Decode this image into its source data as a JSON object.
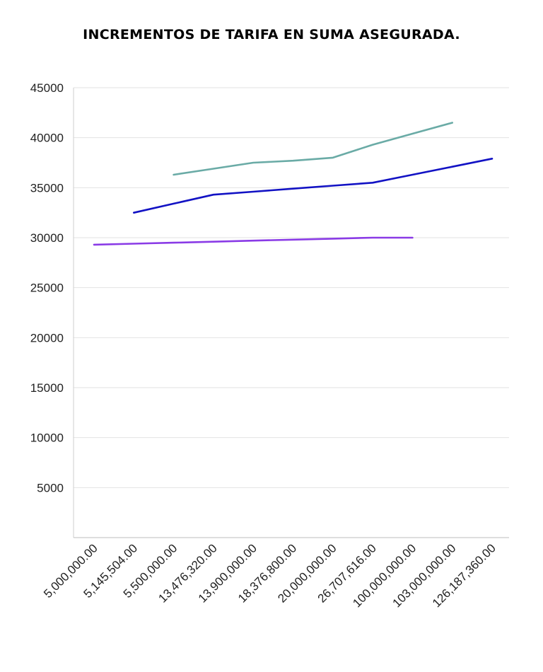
{
  "chart_data": {
    "type": "line",
    "title": "INCREMENTOS DE TARIFA EN SUMA ASEGURADA.",
    "xlabel": "",
    "ylabel": "",
    "categories": [
      "5,000,000.00",
      "5,145,504.00",
      "5,500,000.00",
      "13,476,320.00",
      "13,900,000.00",
      "18,376,800.00",
      "20,000,000.00",
      "26,707,616.00",
      "100,000,000.00",
      "103,000,000.00",
      "126,187,360.00"
    ],
    "yticks": [
      5000,
      10000,
      15000,
      20000,
      25000,
      30000,
      35000,
      40000,
      45000
    ],
    "ylim": [
      0,
      45000
    ],
    "grid": true,
    "series": [
      {
        "color": "#6aaba6",
        "values": [
          null,
          null,
          36300,
          36900,
          37500,
          37700,
          38000,
          39300,
          40400,
          41500,
          null
        ]
      },
      {
        "color": "#1212c4",
        "values": [
          null,
          32500,
          33400,
          34300,
          34600,
          34900,
          35200,
          35500,
          36300,
          37100,
          37900
        ]
      },
      {
        "color": "#8a3be6",
        "values": [
          29300,
          29400,
          29500,
          29600,
          29700,
          29800,
          29900,
          30000,
          30000,
          null,
          null
        ]
      }
    ]
  }
}
